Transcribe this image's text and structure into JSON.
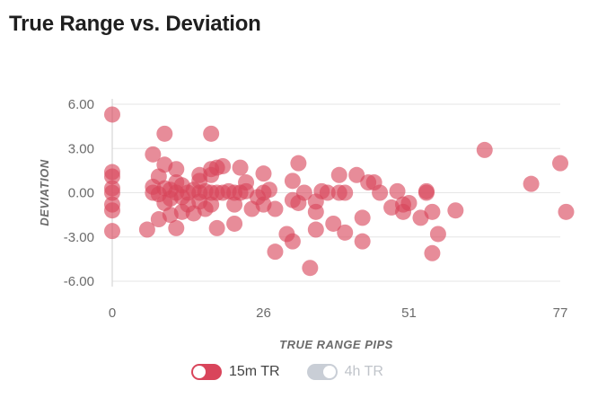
{
  "title": "True Range vs. Deviation",
  "colors": {
    "series_active": "#d9455b",
    "series_inactive": "#c9ced6",
    "grid": "#e6e6e6",
    "tick": "#6b6b6b"
  },
  "legend": [
    {
      "label": "15m TR",
      "active": true,
      "color": "#d9455b"
    },
    {
      "label": "4h TR",
      "active": false,
      "color": "#c9ced6"
    }
  ],
  "chart_data": {
    "type": "scatter",
    "title": "True Range vs. Deviation",
    "xlabel": "TRUE RANGE PIPS",
    "ylabel": "DEVIATION",
    "xlim": [
      0,
      77
    ],
    "ylim": [
      -6,
      6
    ],
    "xticks": [
      "0",
      "26",
      "51",
      "77"
    ],
    "yticks": [
      "6.00",
      "3.00",
      "0.00",
      "-3.00",
      "-6.00"
    ],
    "grid": true,
    "legend_position": "bottom",
    "series": [
      {
        "name": "15m TR",
        "points": [
          [
            0,
            5.3
          ],
          [
            0,
            1.4
          ],
          [
            0,
            1.1
          ],
          [
            0,
            0.3
          ],
          [
            0,
            0
          ],
          [
            0,
            -0.8
          ],
          [
            0,
            -1.2
          ],
          [
            0,
            -2.6
          ],
          [
            6,
            -2.5
          ],
          [
            7,
            2.6
          ],
          [
            7,
            0.4
          ],
          [
            7,
            0
          ],
          [
            8,
            1.1
          ],
          [
            8,
            -0.1
          ],
          [
            8,
            -1.8
          ],
          [
            9,
            4
          ],
          [
            9,
            1.9
          ],
          [
            9,
            0.3
          ],
          [
            9,
            -0.7
          ],
          [
            10,
            0.2
          ],
          [
            10,
            -1.5
          ],
          [
            10,
            -0.4
          ],
          [
            11,
            1.6
          ],
          [
            11,
            0.7
          ],
          [
            11,
            0
          ],
          [
            11,
            -2.4
          ],
          [
            12,
            0.5
          ],
          [
            12,
            -0.3
          ],
          [
            12,
            -1.3
          ],
          [
            13,
            0
          ],
          [
            13,
            -0.8
          ],
          [
            14,
            0.2
          ],
          [
            14,
            -1.4
          ],
          [
            15,
            1.2
          ],
          [
            15,
            0.8
          ],
          [
            15,
            0
          ],
          [
            15,
            -0.6
          ],
          [
            16,
            0.1
          ],
          [
            16,
            -1.1
          ],
          [
            17,
            4
          ],
          [
            17,
            1.6
          ],
          [
            17,
            1.2
          ],
          [
            17,
            0
          ],
          [
            17,
            -0.8
          ],
          [
            18,
            1.7
          ],
          [
            18,
            0
          ],
          [
            18,
            -2.4
          ],
          [
            19,
            1.8
          ],
          [
            19,
            0
          ],
          [
            20,
            0.1
          ],
          [
            21,
            0
          ],
          [
            21,
            -0.8
          ],
          [
            21,
            -2.1
          ],
          [
            22,
            1.7
          ],
          [
            22,
            0
          ],
          [
            23,
            0.7
          ],
          [
            23,
            0.1
          ],
          [
            24,
            -1.1
          ],
          [
            25,
            -0.3
          ],
          [
            26,
            1.3
          ],
          [
            26,
            0
          ],
          [
            26,
            -0.8
          ],
          [
            27,
            0.2
          ],
          [
            28,
            -1.1
          ],
          [
            28,
            -4
          ],
          [
            30,
            -2.8
          ],
          [
            31,
            0.8
          ],
          [
            31,
            -0.5
          ],
          [
            31,
            -3.3
          ],
          [
            32,
            2
          ],
          [
            32,
            -0.7
          ],
          [
            33,
            0
          ],
          [
            34,
            -5.1
          ],
          [
            35,
            -2.5
          ],
          [
            35,
            -0.6
          ],
          [
            35,
            -1.3
          ],
          [
            36,
            0.1
          ],
          [
            37,
            0
          ],
          [
            38,
            -2.1
          ],
          [
            39,
            1.2
          ],
          [
            39,
            0
          ],
          [
            40,
            -2.7
          ],
          [
            40,
            0
          ],
          [
            42,
            1.2
          ],
          [
            43,
            -1.7
          ],
          [
            43,
            -3.3
          ],
          [
            44,
            0.7
          ],
          [
            45,
            0.7
          ],
          [
            46,
            0
          ],
          [
            48,
            -1
          ],
          [
            49,
            0.1
          ],
          [
            50,
            -1.3
          ],
          [
            50,
            -0.8
          ],
          [
            51,
            -0.7
          ],
          [
            53,
            -1.7
          ],
          [
            54,
            0
          ],
          [
            54,
            0.1
          ],
          [
            55,
            -4.1
          ],
          [
            55,
            -1.3
          ],
          [
            56,
            -2.8
          ],
          [
            59,
            -1.2
          ],
          [
            64,
            2.9
          ],
          [
            72,
            0.6
          ],
          [
            77,
            2
          ],
          [
            78,
            -1.3
          ]
        ]
      }
    ]
  }
}
